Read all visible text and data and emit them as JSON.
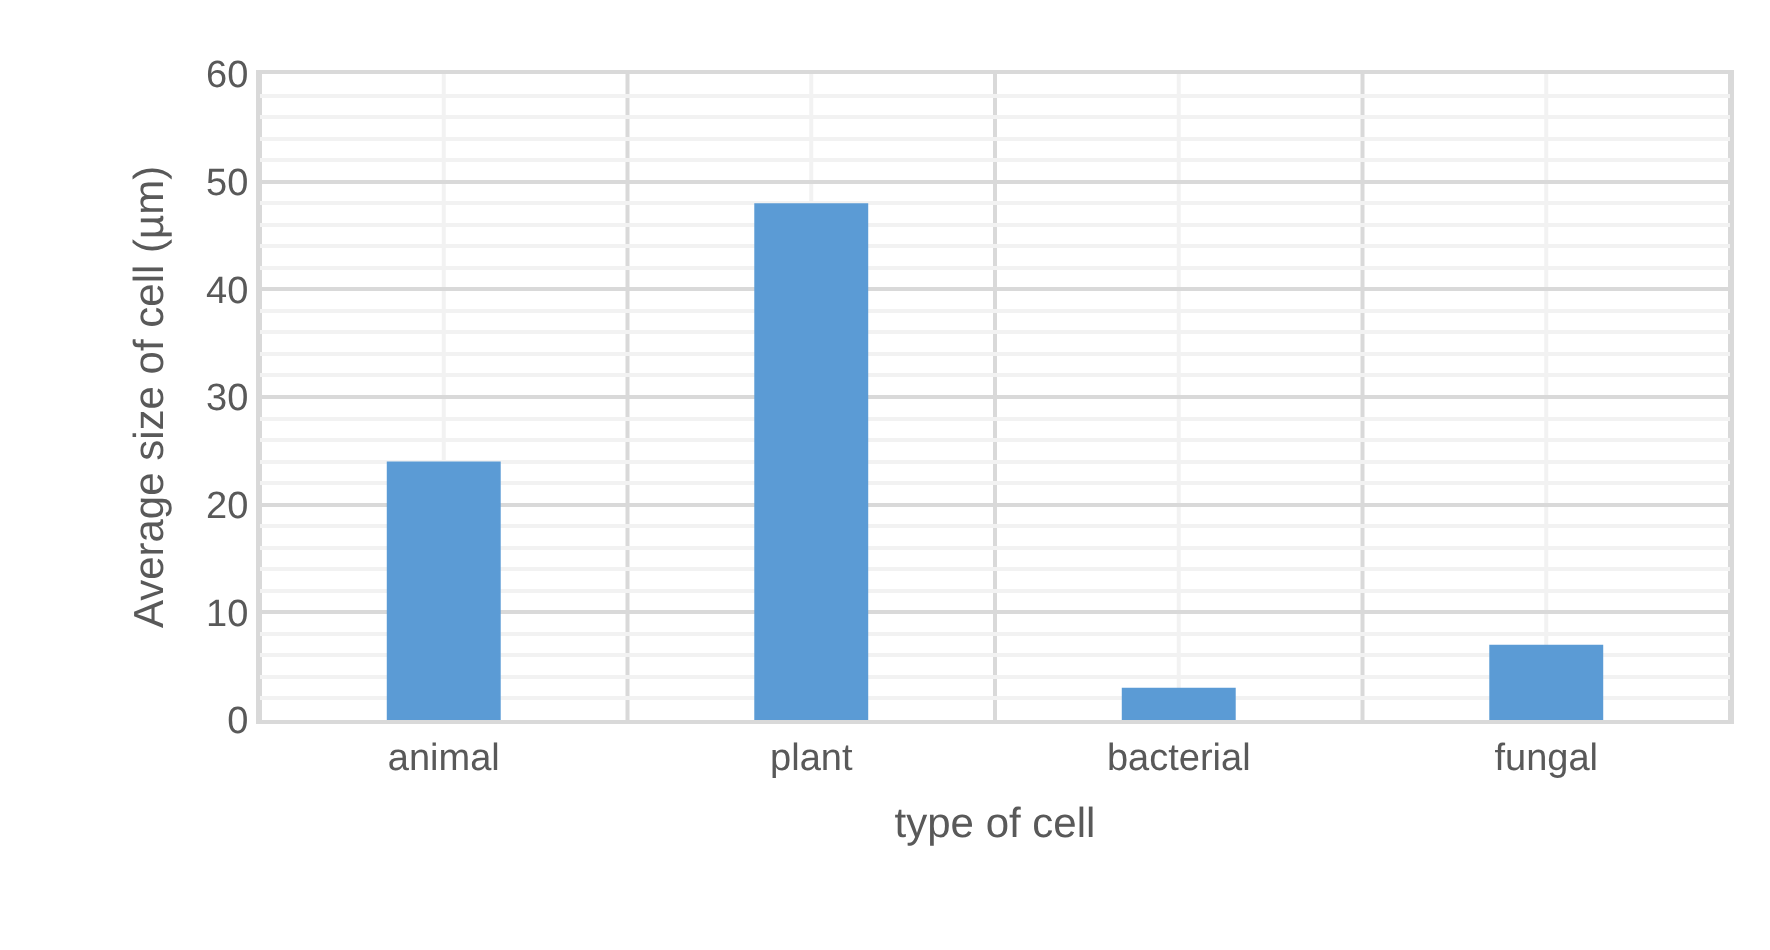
{
  "chart_data": {
    "type": "bar",
    "xlabel": "type of cell",
    "ylabel": "Average size of cell (µm)",
    "categories": [
      "animal",
      "plant",
      "bacterial",
      "fungal"
    ],
    "values": [
      24,
      48,
      3,
      7
    ],
    "color": "#5b9bd5",
    "ylim": [
      0,
      60
    ],
    "yticks": [
      0,
      10,
      20,
      30,
      40,
      50,
      60
    ],
    "grid": true
  }
}
